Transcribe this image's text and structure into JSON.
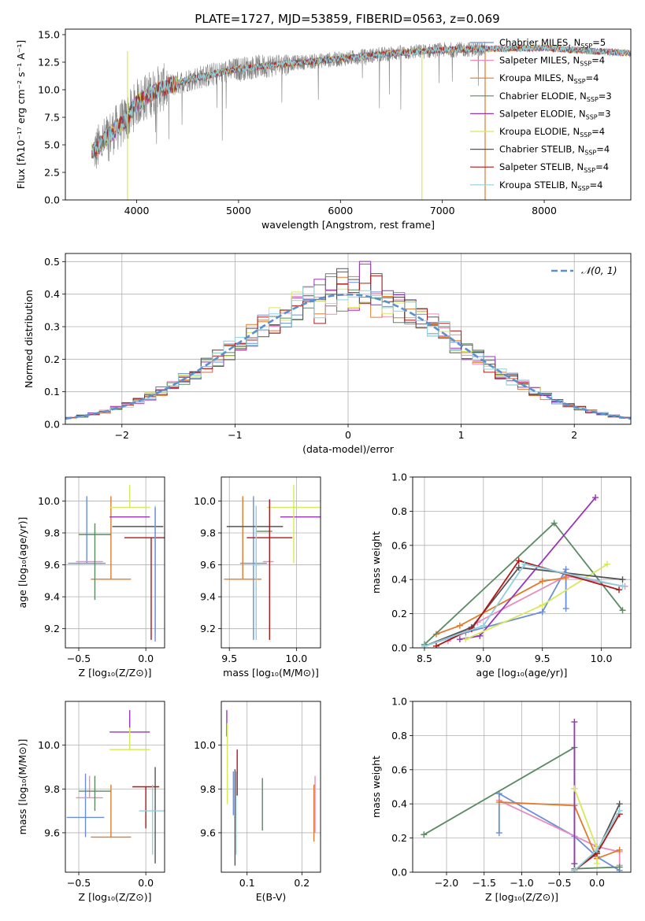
{
  "figure_title": "PLATE=1727, MJD=53859, FIBERID=0563, z=0.069",
  "colors": {
    "chabrier_miles": "#6a8fd8",
    "salpeter_miles": "#e98bbf",
    "kroupa_miles": "#e07b2c",
    "chabrier_elodie": "#5b8a62",
    "salpeter_elodie": "#9a35b8",
    "kroupa_elodie": "#d7e85a",
    "chabrier_stelib": "#555555",
    "salpeter_stelib": "#b01717",
    "kroupa_stelib": "#8fd0dc",
    "observed": "#808080",
    "normal": "#5b8fd0"
  },
  "legend_spectrum": [
    {
      "key": "chabrier_miles",
      "label": "Chabrier MILES, N",
      "sub": "SSP",
      "tail": "=5"
    },
    {
      "key": "salpeter_miles",
      "label": "Salpeter MILES, N",
      "sub": "SSP",
      "tail": "=4"
    },
    {
      "key": "kroupa_miles",
      "label": "Kroupa MILES, N",
      "sub": "SSP",
      "tail": "=4"
    },
    {
      "key": "chabrier_elodie",
      "label": "Chabrier ELODIE, N",
      "sub": "SSP",
      "tail": "=3"
    },
    {
      "key": "salpeter_elodie",
      "label": "Salpeter ELODIE, N",
      "sub": "SSP",
      "tail": "=3"
    },
    {
      "key": "kroupa_elodie",
      "label": "Kroupa ELODIE, N",
      "sub": "SSP",
      "tail": "=4"
    },
    {
      "key": "chabrier_stelib",
      "label": "Chabrier STELIB, N",
      "sub": "SSP",
      "tail": "=4"
    },
    {
      "key": "salpeter_stelib",
      "label": "Salpeter STELIB, N",
      "sub": "SSP",
      "tail": "=4"
    },
    {
      "key": "kroupa_stelib",
      "label": "Kroupa STELIB, N",
      "sub": "SSP",
      "tail": "=4"
    }
  ],
  "chart_data": [
    {
      "id": "spectrum",
      "type": "line",
      "xlabel": "wavelength [Angstrom, rest frame]",
      "ylabel": "Flux [fλ10⁻¹⁷ erg cm⁻² s⁻¹ A⁻¹]",
      "xlim": [
        3300,
        8850
      ],
      "ylim": [
        0,
        15.5
      ],
      "xticks": [
        4000,
        5000,
        6000,
        7000,
        8000
      ],
      "yticks": [
        0.0,
        2.5,
        5.0,
        7.5,
        10.0,
        12.5,
        15.0
      ],
      "grid": false,
      "continuum": {
        "x": [
          3600,
          3700,
          3800,
          3900,
          4000,
          4200,
          4500,
          5000,
          5500,
          6000,
          6500,
          7000,
          7400,
          8000,
          8500,
          8850
        ],
        "y": [
          4.5,
          5.6,
          6.5,
          7.3,
          8.8,
          10.0,
          10.9,
          11.9,
          12.4,
          12.8,
          13.3,
          13.6,
          13.7,
          13.8,
          13.5,
          13.3
        ]
      },
      "observed_xmax": 7420
    },
    {
      "id": "residuals",
      "type": "line",
      "xlabel": "(data-model)/error",
      "ylabel": "Normed distribution",
      "xlim": [
        -2.5,
        2.5
      ],
      "ylim": [
        0,
        0.525
      ],
      "xticks": [
        -2,
        -1,
        0,
        1,
        2
      ],
      "yticks": [
        0.0,
        0.1,
        0.2,
        0.3,
        0.4,
        0.5
      ],
      "grid": true,
      "legend": "𝒩(0, 1)",
      "legend_position": "top-right",
      "bin_width": 0.1
    },
    {
      "id": "age_vs_Z",
      "type": "scatter",
      "xlabel": "Z [log₁₀(Z/Z⊙)]",
      "ylabel": "age  [log₁₀(age/yr)]",
      "xlim": [
        -0.6,
        0.14
      ],
      "ylim": [
        9.08,
        10.15
      ],
      "xticks": [
        -0.5,
        0.0
      ],
      "yticks": [
        9.2,
        9.4,
        9.6,
        9.8,
        10.0
      ],
      "grid": true,
      "errorbars": [
        {
          "key": "chabrier_miles",
          "x": -0.44,
          "xerr": 0.14,
          "y": 9.61,
          "yerr": [
            0.0,
            0.42
          ]
        },
        {
          "key": "salpeter_miles",
          "x": -0.42,
          "xerr": 0.1,
          "y": 9.62,
          "yerr": [
            0.0,
            0.0
          ]
        },
        {
          "key": "kroupa_miles",
          "x": -0.26,
          "xerr": 0.15,
          "y": 9.51,
          "yerr": [
            0.0,
            0.52
          ]
        },
        {
          "key": "chabrier_elodie",
          "x": -0.38,
          "xerr": 0.12,
          "y": 9.79,
          "yerr": [
            0.41,
            0.07
          ]
        },
        {
          "key": "salpeter_elodie",
          "x": -0.12,
          "xerr": 0.15,
          "y": 9.9,
          "yerr": [
            0.0,
            0.0
          ]
        },
        {
          "key": "kroupa_elodie",
          "x": -0.12,
          "xerr": 0.15,
          "y": 9.96,
          "yerr": [
            0.0,
            0.14
          ]
        },
        {
          "key": "chabrier_stelib",
          "x": -0.06,
          "xerr": 0.19,
          "y": 9.84,
          "yerr": [
            0.0,
            0.0
          ]
        },
        {
          "key": "salpeter_stelib",
          "x": 0.04,
          "xerr": 0.2,
          "y": 9.77,
          "yerr": [
            0.64,
            0.0
          ]
        },
        {
          "key": "kroupa_stelib",
          "x": 0.07,
          "xerr": 0.02,
          "y": 9.6,
          "yerr": [
            0.43,
            0.37
          ]
        },
        {
          "key": "chabrier_miles",
          "x": 0.07,
          "xerr": 0.0,
          "y": 9.6,
          "yerr": [
            0.48,
            0.36
          ]
        }
      ]
    },
    {
      "id": "age_vs_mass",
      "type": "scatter",
      "xlabel": "mass [log₁₀(M/M⊙)]",
      "ylabel": "",
      "xlim": [
        9.44,
        10.18
      ],
      "ylim": [
        9.08,
        10.15
      ],
      "xticks": [
        9.5,
        10.0
      ],
      "yticks": [
        9.2,
        9.4,
        9.6,
        9.8,
        10.0
      ],
      "grid": true,
      "errorbars": [
        {
          "key": "chabrier_miles",
          "x": 9.68,
          "xerr": 0.1,
          "y": 9.61,
          "yerr": [
            0.48,
            0.42
          ]
        },
        {
          "key": "salpeter_miles",
          "x": 9.79,
          "xerr": 0.04,
          "y": 9.62,
          "yerr": [
            0.0,
            0.0
          ]
        },
        {
          "key": "kroupa_miles",
          "x": 9.6,
          "xerr": 0.14,
          "y": 9.51,
          "yerr": [
            0.0,
            0.52
          ]
        },
        {
          "key": "chabrier_elodie",
          "x": 9.76,
          "xerr": 0.06,
          "y": 9.81,
          "yerr": [
            0.0,
            0.0
          ]
        },
        {
          "key": "salpeter_elodie",
          "x": 10.03,
          "xerr": 0.15,
          "y": 9.9,
          "yerr": [
            0.0,
            0.0
          ]
        },
        {
          "key": "kroupa_elodie",
          "x": 9.98,
          "xerr": 0.2,
          "y": 9.96,
          "yerr": [
            0.35,
            0.14
          ]
        },
        {
          "key": "chabrier_stelib",
          "x": 9.69,
          "xerr": 0.21,
          "y": 9.84,
          "yerr": [
            0.0,
            0.0
          ]
        },
        {
          "key": "salpeter_stelib",
          "x": 9.8,
          "xerr": 0.17,
          "y": 9.77,
          "yerr": [
            0.64,
            0.24
          ]
        },
        {
          "key": "kroupa_stelib",
          "x": 9.7,
          "xerr": 0.03,
          "y": 9.6,
          "yerr": [
            0.47,
            0.37
          ]
        }
      ]
    },
    {
      "id": "weight_vs_age",
      "type": "line",
      "xlabel": "age  [log₁₀(age/yr)]",
      "ylabel": "mass weight",
      "xlim": [
        8.4,
        10.25
      ],
      "ylim": [
        0,
        1.0
      ],
      "xticks": [
        8.5,
        9.0,
        9.5,
        10.0
      ],
      "yticks": [
        0.0,
        0.2,
        0.4,
        0.6,
        0.8,
        1.0
      ],
      "grid": true,
      "series": [
        {
          "key": "chabrier_miles",
          "x": [
            8.5,
            8.85,
            9.5,
            9.7,
            9.7
          ],
          "y": [
            0.01,
            0.09,
            0.21,
            0.46,
            0.23
          ]
        },
        {
          "key": "salpeter_miles",
          "x": [
            8.7,
            8.95,
            9.7,
            10.2
          ],
          "y": [
            0.04,
            0.15,
            0.42,
            0.36
          ]
        },
        {
          "key": "kroupa_miles",
          "x": [
            8.6,
            8.8,
            9.5,
            9.7
          ],
          "y": [
            0.08,
            0.13,
            0.39,
            0.41
          ]
        },
        {
          "key": "chabrier_elodie",
          "x": [
            8.5,
            9.6,
            10.18
          ],
          "y": [
            0.02,
            0.73,
            0.22
          ]
        },
        {
          "key": "salpeter_elodie",
          "x": [
            8.8,
            8.97,
            9.95
          ],
          "y": [
            0.05,
            0.07,
            0.88
          ]
        },
        {
          "key": "kroupa_elodie",
          "x": [
            8.85,
            9.5,
            10.05
          ],
          "y": [
            0.05,
            0.25,
            0.49
          ]
        },
        {
          "key": "chabrier_stelib",
          "x": [
            8.5,
            8.9,
            9.3,
            10.18
          ],
          "y": [
            0.01,
            0.12,
            0.47,
            0.4
          ]
        },
        {
          "key": "salpeter_stelib",
          "x": [
            8.6,
            8.9,
            9.3,
            10.15
          ],
          "y": [
            0.01,
            0.11,
            0.51,
            0.34
          ]
        },
        {
          "key": "kroupa_stelib",
          "x": [
            8.5,
            9.0,
            9.35,
            10.18
          ],
          "y": [
            0.01,
            0.13,
            0.49,
            0.36
          ]
        }
      ]
    },
    {
      "id": "mass_vs_Z",
      "type": "scatter",
      "xlabel": "Z [log₁₀(Z/Z⊙)]",
      "ylabel": "mass [log₁₀(M/M⊙)]",
      "xlim": [
        -0.6,
        0.14
      ],
      "ylim": [
        9.42,
        10.2
      ],
      "xticks": [
        -0.5,
        0.0
      ],
      "yticks": [
        9.6,
        9.8,
        10.0
      ],
      "grid": true,
      "errorbars": [
        {
          "key": "chabrier_miles",
          "x": -0.45,
          "xerr": 0.14,
          "y": 9.67,
          "yerr": [
            0.09,
            0.2
          ]
        },
        {
          "key": "salpeter_miles",
          "x": -0.42,
          "xerr": 0.1,
          "y": 9.76,
          "yerr": [
            0.0,
            0.1
          ]
        },
        {
          "key": "kroupa_miles",
          "x": -0.26,
          "xerr": 0.15,
          "y": 9.58,
          "yerr": [
            0.0,
            0.24
          ]
        },
        {
          "key": "chabrier_elodie",
          "x": -0.38,
          "xerr": 0.12,
          "y": 9.79,
          "yerr": [
            0.09,
            0.07
          ]
        },
        {
          "key": "salpeter_elodie",
          "x": -0.12,
          "xerr": 0.15,
          "y": 10.06,
          "yerr": [
            0.0,
            0.1
          ]
        },
        {
          "key": "kroupa_elodie",
          "x": -0.12,
          "xerr": 0.15,
          "y": 9.98,
          "yerr": [
            0.0,
            0.1
          ]
        },
        {
          "key": "chabrier_stelib",
          "x": 0.07,
          "xerr": 0.0,
          "y": 9.71,
          "yerr": [
            0.25,
            0.19
          ]
        },
        {
          "key": "salpeter_stelib",
          "x": 0.0,
          "xerr": 0.1,
          "y": 9.81,
          "yerr": [
            0.19,
            0.0
          ]
        },
        {
          "key": "kroupa_stelib",
          "x": 0.05,
          "xerr": 0.1,
          "y": 9.7,
          "yerr": [
            0.2,
            0.12
          ]
        }
      ]
    },
    {
      "id": "mass_vs_EBV",
      "type": "scatter",
      "xlabel": "E(B-V)",
      "ylabel": "",
      "xlim": [
        0.053,
        0.234
      ],
      "ylim": [
        9.42,
        10.2
      ],
      "xticks": [
        0.1,
        0.2
      ],
      "yticks": [
        9.6,
        9.8,
        10.0
      ],
      "grid": true,
      "errorbars": [
        {
          "key": "chabrier_miles",
          "x": 0.075,
          "xerr": 0.0,
          "y": 9.78,
          "yerr": [
            0.1,
            0.1
          ]
        },
        {
          "key": "salpeter_miles",
          "x": 0.224,
          "xerr": 0.0,
          "y": 9.74,
          "yerr": [
            0.14,
            0.12
          ]
        },
        {
          "key": "kroupa_miles",
          "x": 0.222,
          "xerr": 0.0,
          "y": 9.69,
          "yerr": [
            0.13,
            0.13
          ]
        },
        {
          "key": "chabrier_elodie",
          "x": 0.128,
          "xerr": 0.0,
          "y": 9.73,
          "yerr": [
            0.12,
            0.12
          ]
        },
        {
          "key": "salpeter_elodie",
          "x": 0.063,
          "xerr": 0.0,
          "y": 10.04,
          "yerr": [
            0.0,
            0.12
          ]
        },
        {
          "key": "kroupa_elodie",
          "x": 0.064,
          "xerr": 0.0,
          "y": 9.9,
          "yerr": [
            0.17,
            0.2
          ]
        },
        {
          "key": "chabrier_stelib",
          "x": 0.078,
          "xerr": 0.0,
          "y": 9.7,
          "yerr": [
            0.25,
            0.19
          ]
        },
        {
          "key": "salpeter_stelib",
          "x": 0.082,
          "xerr": 0.0,
          "y": 9.85,
          "yerr": [
            0.08,
            0.13
          ]
        },
        {
          "key": "kroupa_stelib",
          "x": 0.08,
          "xerr": 0.0,
          "y": 9.7,
          "yerr": [
            0.2,
            0.18
          ]
        }
      ]
    },
    {
      "id": "weight_vs_Z",
      "type": "line",
      "xlabel": "Z [log₁₀(Z/Z⊙)]",
      "ylabel": "mass weight",
      "xlim": [
        -2.45,
        0.45
      ],
      "ylim": [
        0,
        1.0
      ],
      "xticks": [
        -2.0,
        -1.5,
        -1.0,
        -0.5,
        0.0
      ],
      "yticks": [
        0.0,
        0.2,
        0.4,
        0.6,
        0.8,
        1.0
      ],
      "grid": true,
      "series": [
        {
          "key": "chabrier_miles",
          "x": [
            -1.3,
            -1.3,
            -0.3,
            0.0,
            0.3
          ],
          "y": [
            0.23,
            0.46,
            0.21,
            0.09,
            0.01
          ]
        },
        {
          "key": "salpeter_miles",
          "x": [
            -1.3,
            0.0,
            0.3,
            0.3
          ],
          "y": [
            0.42,
            0.15,
            0.12,
            0.04
          ]
        },
        {
          "key": "kroupa_miles",
          "x": [
            -1.3,
            -0.3,
            0.0,
            0.3
          ],
          "y": [
            0.41,
            0.39,
            0.08,
            0.13
          ]
        },
        {
          "key": "chabrier_elodie",
          "x": [
            -2.3,
            -0.3,
            -0.3,
            0.3
          ],
          "y": [
            0.22,
            0.73,
            0.02,
            0.03
          ]
        },
        {
          "key": "salpeter_elodie",
          "x": [
            -0.3,
            -0.3,
            -0.3
          ],
          "y": [
            0.88,
            0.49,
            0.05
          ]
        },
        {
          "key": "kroupa_elodie",
          "x": [
            -0.3,
            0.0,
            0.0
          ],
          "y": [
            0.49,
            0.14,
            0.05
          ]
        },
        {
          "key": "chabrier_stelib",
          "x": [
            -0.3,
            0.0,
            0.3
          ],
          "y": [
            0.01,
            0.12,
            0.4
          ]
        },
        {
          "key": "salpeter_stelib",
          "x": [
            -0.3,
            0.0,
            0.3
          ],
          "y": [
            0.01,
            0.11,
            0.34
          ]
        },
        {
          "key": "kroupa_stelib",
          "x": [
            -0.3,
            0.0,
            0.3
          ],
          "y": [
            0.01,
            0.13,
            0.36
          ]
        }
      ]
    }
  ]
}
